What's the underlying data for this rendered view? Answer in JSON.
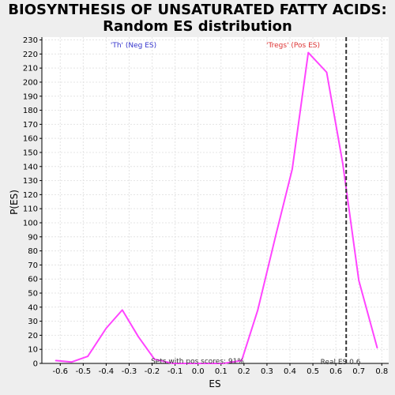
{
  "chart_data": {
    "type": "line",
    "title_lines": [
      "BIOSYNTHESIS OF UNSATURATED FATTY ACIDS:",
      "Random ES distribution"
    ],
    "xlabel": "ES",
    "ylabel": "P(ES)",
    "xlim": [
      -0.68,
      0.83
    ],
    "ylim": [
      0,
      232
    ],
    "xticks": [
      -0.6,
      -0.5,
      -0.4,
      -0.3,
      -0.2,
      -0.1,
      0.0,
      0.1,
      0.2,
      0.3,
      0.4,
      0.5,
      0.6,
      0.7,
      0.8
    ],
    "xtick_labels": [
      "-0.6",
      "-0.5",
      "-0.4",
      "-0.3",
      "-0.2",
      "-0.1",
      "0.0",
      "0.1",
      "0.2",
      "0.3",
      "0.4",
      "0.5",
      "0.6",
      "0.7",
      "0.8"
    ],
    "yticks": [
      0,
      10,
      20,
      30,
      40,
      50,
      60,
      70,
      80,
      90,
      100,
      110,
      120,
      130,
      140,
      150,
      160,
      170,
      180,
      190,
      200,
      210,
      220,
      230
    ],
    "ytick_labels": [
      "0",
      "10",
      "20",
      "30",
      "40",
      "50",
      "60",
      "70",
      "80",
      "90",
      "100",
      "110",
      "120",
      "130",
      "140",
      "150",
      "160",
      "170",
      "180",
      "190",
      "200",
      "210",
      "220",
      "230"
    ],
    "grid": true,
    "series": [
      {
        "color": "#ff44ff",
        "x": [
          -0.62,
          -0.55,
          -0.48,
          -0.4,
          -0.33,
          -0.26,
          -0.19,
          -0.11,
          -0.04,
          0.04,
          0.11,
          0.19,
          0.26,
          0.34,
          0.41,
          0.48,
          0.56,
          0.63,
          0.7,
          0.78
        ],
        "y": [
          2,
          1,
          5,
          25,
          38,
          19,
          3,
          0,
          0,
          0,
          0,
          2,
          38,
          92,
          138,
          221,
          207,
          142,
          59,
          11
        ]
      }
    ],
    "real_es": {
      "x": 0.645,
      "color": "#333333"
    },
    "annotations": {
      "neg_label": "'Th' (Neg ES)",
      "neg_color": "#3333cc",
      "pos_label": "'Tregs' (Pos ES)",
      "pos_color": "#dd3333",
      "sets_text": "Sets with pos scores: 91%",
      "real_es_text": "Real ES 0.6"
    },
    "colors": {
      "background": "#eeeeee",
      "plot_background": "#ffffff",
      "grid": "#e0e0e0"
    }
  }
}
